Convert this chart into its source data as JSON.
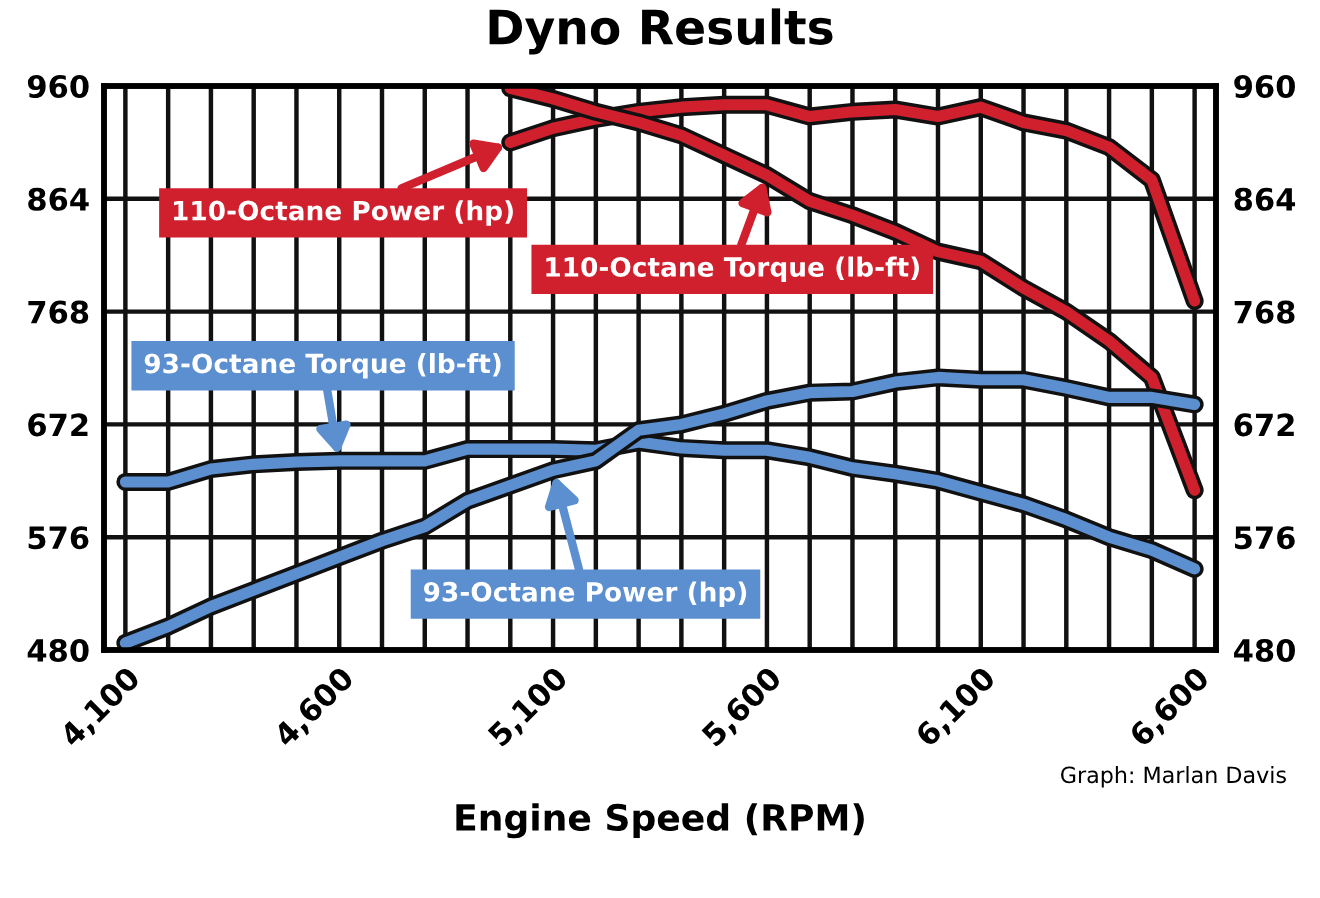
{
  "chart_data": {
    "type": "line",
    "title": "Dyno Results",
    "xlabel": "Engine Speed (RPM)",
    "annotations": [
      "Graph: Marlan Davis"
    ],
    "x": [
      4100,
      4200,
      4300,
      4400,
      4500,
      4600,
      4700,
      4800,
      4900,
      5000,
      5100,
      5200,
      5300,
      5400,
      5500,
      5600,
      5700,
      5800,
      5900,
      6000,
      6100,
      6200,
      6300,
      6400,
      6500,
      6600
    ],
    "series": [
      {
        "name": "110-Octane Power (hp)",
        "color": "#d0202e",
        "x": [
          5000,
          5100,
          5200,
          5300,
          5400,
          5500,
          5600,
          5700,
          5800,
          5900,
          6000,
          6100,
          6200,
          6300,
          6400,
          6500,
          6600
        ],
        "values": [
          912,
          924,
          932,
          938,
          942,
          944,
          944,
          934,
          938,
          940,
          934,
          942,
          929,
          922,
          908,
          880,
          777
        ]
      },
      {
        "name": "110-Octane Torque (lb-ft)",
        "color": "#d0202e",
        "x": [
          5000,
          5100,
          5200,
          5300,
          5400,
          5500,
          5600,
          5700,
          5800,
          5900,
          6000,
          6100,
          6200,
          6300,
          6400,
          6500,
          6600
        ],
        "values": [
          958,
          949,
          938,
          929,
          918,
          901,
          884,
          862,
          850,
          836,
          819,
          811,
          788,
          768,
          743,
          712,
          616
        ]
      },
      {
        "name": "93-Octane Torque (lb-ft)",
        "color": "#5b8fd0",
        "values": [
          623,
          623,
          634,
          638,
          640,
          641,
          641,
          641,
          651,
          651,
          651,
          650,
          657,
          652,
          650,
          650,
          644,
          635,
          630,
          624,
          614,
          604,
          591,
          576,
          565,
          549
        ]
      },
      {
        "name": "93-Octane Power (hp)",
        "color": "#5b8fd0",
        "values": [
          486,
          500,
          517,
          531,
          545,
          559,
          573,
          585,
          607,
          620,
          633,
          641,
          667,
          672,
          681,
          692,
          699,
          700,
          708,
          712,
          710,
          710,
          703,
          695,
          695,
          689
        ]
      }
    ],
    "xlim": [
      4050,
      6650
    ],
    "xticks": [
      {
        "value": 4100,
        "label": "4,100"
      },
      {
        "value": 4200,
        "label": null
      },
      {
        "value": 4300,
        "label": null
      },
      {
        "value": 4400,
        "label": null
      },
      {
        "value": 4500,
        "label": null
      },
      {
        "value": 4600,
        "label": "4,600"
      },
      {
        "value": 4700,
        "label": null
      },
      {
        "value": 4800,
        "label": null
      },
      {
        "value": 4900,
        "label": null
      },
      {
        "value": 5000,
        "label": null
      },
      {
        "value": 5100,
        "label": "5,100"
      },
      {
        "value": 5200,
        "label": null
      },
      {
        "value": 5300,
        "label": null
      },
      {
        "value": 5400,
        "label": null
      },
      {
        "value": 5500,
        "label": null
      },
      {
        "value": 5600,
        "label": "5,600"
      },
      {
        "value": 5700,
        "label": null
      },
      {
        "value": 5800,
        "label": null
      },
      {
        "value": 5900,
        "label": null
      },
      {
        "value": 6000,
        "label": null
      },
      {
        "value": 6100,
        "label": "6,100"
      },
      {
        "value": 6200,
        "label": null
      },
      {
        "value": 6300,
        "label": null
      },
      {
        "value": 6400,
        "label": null
      },
      {
        "value": 6500,
        "label": null
      },
      {
        "value": 6600,
        "label": "6,600"
      }
    ],
    "ylim": [
      480,
      960
    ],
    "yticks": [
      480,
      576,
      672,
      768,
      864,
      960
    ],
    "y2lim": [
      480,
      960
    ],
    "y2ticks": [
      480,
      576,
      672,
      768,
      864,
      960
    ],
    "grid": true,
    "legend": "top left",
    "marker": "none",
    "line_style": "solid"
  }
}
